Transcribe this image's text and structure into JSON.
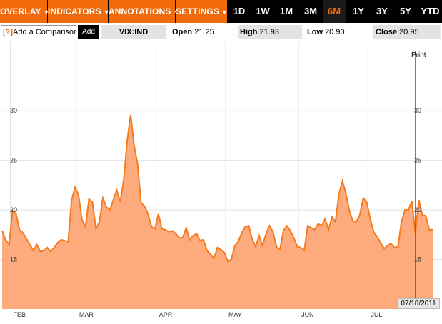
{
  "toolbar": {
    "menus": [
      {
        "label": "OVERLAY",
        "caret": "▼"
      },
      {
        "label": "INDICATORS",
        "caret": "▼"
      },
      {
        "label": "ANNOTATIONS",
        "caret": "▼"
      },
      {
        "label": "SETTINGS",
        "caret": "▼"
      }
    ],
    "ranges": [
      "1D",
      "1W",
      "1M",
      "3M",
      "6M",
      "1Y",
      "3Y",
      "5Y",
      "YTD"
    ],
    "active_range": "6M"
  },
  "quote": {
    "help": "[?]",
    "compare_placeholder": "Add a Comparison",
    "add_label": "Add",
    "symbol": "VIX:IND",
    "open_label": "Open",
    "open_value": "21.25",
    "high_label": "High",
    "high_value": "21.93",
    "low_label": "Low",
    "low_value": "20.90",
    "close_label": "Close",
    "close_value": "20.95"
  },
  "print_label": "Print",
  "date_label": "07/18/2011",
  "colors": {
    "accent": "#f26b0b",
    "line": "#f47b20",
    "fill": "#fdaa7d",
    "marker": "#c0392b"
  },
  "chart_data": {
    "type": "area",
    "ylim": [
      10,
      37
    ],
    "y_ticks": [
      "15",
      "20",
      "25",
      "30"
    ],
    "x_ticks": [
      "FEB",
      "MAR",
      "APR",
      "MAY",
      "JUN",
      "JUL"
    ],
    "x_ticks_index": [
      4,
      23,
      46,
      66,
      87,
      107
    ],
    "grid": true,
    "series": [
      {
        "values": [
          17.9,
          17.0,
          16.5,
          19.9,
          19.6,
          18.0,
          17.7,
          17.1,
          16.5,
          15.9,
          16.5,
          15.8,
          15.9,
          16.2,
          15.8,
          16.2,
          16.7,
          17.0,
          16.9,
          16.8,
          21.0,
          22.3,
          21.5,
          19.0,
          18.3,
          21.1,
          20.8,
          18.1,
          18.8,
          21.2,
          20.3,
          20.0,
          21.0,
          22.0,
          20.8,
          23.0,
          27.0,
          29.6,
          26.5,
          24.6,
          20.7,
          20.4,
          19.6,
          18.3,
          18.1,
          19.6,
          18.1,
          18.0,
          17.8,
          17.9,
          17.6,
          17.2,
          17.2,
          18.2,
          17.0,
          17.4,
          17.6,
          16.9,
          17.0,
          15.9,
          15.5,
          15.1,
          16.2,
          16.0,
          15.7,
          14.8,
          15.0,
          16.4,
          16.8,
          17.7,
          18.3,
          18.4,
          17.1,
          16.3,
          17.4,
          16.4,
          17.6,
          18.4,
          17.8,
          16.3,
          16.0,
          17.9,
          18.4,
          17.9,
          17.2,
          16.3,
          16.2,
          15.9,
          18.4,
          18.2,
          18.0,
          18.6,
          18.4,
          19.1,
          18.0,
          19.3,
          18.8,
          21.6,
          22.9,
          21.7,
          19.9,
          18.9,
          18.8,
          19.5,
          21.2,
          20.8,
          19.1,
          17.8,
          17.3,
          16.7,
          16.1,
          16.4,
          16.6,
          16.2,
          16.3,
          18.8,
          20.0,
          20.0,
          20.9,
          17.6,
          21.0,
          19.5,
          19.4,
          18.0,
          18.0
        ]
      }
    ]
  }
}
